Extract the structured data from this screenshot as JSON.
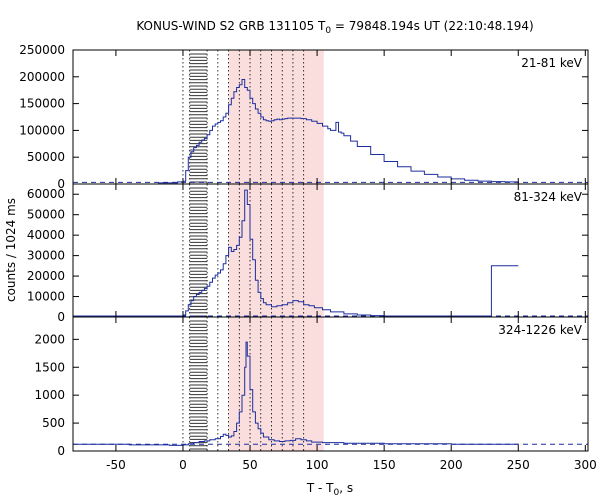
{
  "chart_data": {
    "type": "line",
    "title_main": "KONUS-WIND S2 GRB 131105 T",
    "title_sub": "0",
    "title_rest": " = 79848.194s UT (22:10:48.194)",
    "xlabel_main": "T - T",
    "xlabel_sub": "0",
    "xlabel_rest": ", s",
    "ylabel": "counts / 1024 ms",
    "xlim": [
      -82,
      302
    ],
    "xticks": [
      -50,
      0,
      50,
      100,
      150,
      200,
      250,
      300
    ],
    "colors": {
      "curve": "#1c2e9e",
      "background": "#1c2e9e",
      "shade": "#f6c8c8",
      "bands": "#000000"
    },
    "shade_region": [
      34,
      105
    ],
    "hatched_region": [
      5,
      18
    ],
    "vertical_lines": [
      0,
      5,
      18,
      26,
      34,
      42,
      50,
      58,
      66,
      74,
      82,
      90
    ],
    "panels": [
      {
        "energy_label": "21-81 keV",
        "ylim": [
          0,
          250000
        ],
        "yticks": [
          0,
          50000,
          100000,
          150000,
          200000,
          250000
        ],
        "background_level": 3000,
        "series": {
          "name": "21-81 keV",
          "points": [
            [
              -82,
              0
            ],
            [
              -20,
              0
            ],
            [
              -18,
              2000
            ],
            [
              -5,
              2000
            ],
            [
              -4,
              4000
            ],
            [
              0,
              5000
            ],
            [
              2,
              25000
            ],
            [
              4,
              50000
            ],
            [
              6,
              60000
            ],
            [
              8,
              68000
            ],
            [
              10,
              72000
            ],
            [
              12,
              78000
            ],
            [
              14,
              82000
            ],
            [
              16,
              85000
            ],
            [
              18,
              92000
            ],
            [
              20,
              100000
            ],
            [
              22,
              108000
            ],
            [
              24,
              112000
            ],
            [
              26,
              115000
            ],
            [
              28,
              118000
            ],
            [
              30,
              125000
            ],
            [
              32,
              132000
            ],
            [
              34,
              148000
            ],
            [
              36,
              160000
            ],
            [
              38,
              172000
            ],
            [
              40,
              180000
            ],
            [
              42,
              185000
            ],
            [
              44,
              195000
            ],
            [
              46,
              180000
            ],
            [
              48,
              175000
            ],
            [
              50,
              160000
            ],
            [
              52,
              150000
            ],
            [
              54,
              140000
            ],
            [
              56,
              132000
            ],
            [
              58,
              125000
            ],
            [
              60,
              120000
            ],
            [
              62,
              118000
            ],
            [
              64,
              117000
            ],
            [
              66,
              118000
            ],
            [
              68,
              120000
            ],
            [
              70,
              121000
            ],
            [
              72,
              120000
            ],
            [
              74,
              121000
            ],
            [
              76,
              122000
            ],
            [
              78,
              123000
            ],
            [
              80,
              123000
            ],
            [
              84,
              123000
            ],
            [
              88,
              122000
            ],
            [
              92,
              120000
            ],
            [
              96,
              117000
            ],
            [
              100,
              113000
            ],
            [
              104,
              108000
            ],
            [
              108,
              103000
            ],
            [
              110,
              100000
            ],
            [
              112,
              100000
            ],
            [
              114,
              115000
            ],
            [
              115,
              115000
            ],
            [
              116,
              97000
            ],
            [
              118,
              95000
            ],
            [
              120,
              90000
            ],
            [
              125,
              80000
            ],
            [
              130,
              70000
            ],
            [
              140,
              55000
            ],
            [
              150,
              42000
            ],
            [
              160,
              32000
            ],
            [
              170,
              24000
            ],
            [
              180,
              18000
            ],
            [
              190,
              13000
            ],
            [
              200,
              9500
            ],
            [
              210,
              7000
            ],
            [
              220,
              5500
            ],
            [
              230,
              4500
            ],
            [
              240,
              4000
            ],
            [
              250,
              3500
            ]
          ]
        }
      },
      {
        "energy_label": "81-324 keV",
        "ylim": [
          0,
          65000
        ],
        "yticks": [
          0,
          10000,
          20000,
          30000,
          40000,
          50000,
          60000
        ],
        "background_level": 500,
        "series": {
          "name": "81-324 keV",
          "points": [
            [
              -82,
              500
            ],
            [
              -5,
              500
            ],
            [
              0,
              1000
            ],
            [
              2,
              3000
            ],
            [
              4,
              6000
            ],
            [
              6,
              8000
            ],
            [
              8,
              10000
            ],
            [
              10,
              11000
            ],
            [
              12,
              12000
            ],
            [
              14,
              13000
            ],
            [
              16,
              14000
            ],
            [
              18,
              15000
            ],
            [
              20,
              17000
            ],
            [
              22,
              19000
            ],
            [
              24,
              20500
            ],
            [
              26,
              21500
            ],
            [
              28,
              23000
            ],
            [
              30,
              26000
            ],
            [
              32,
              30000
            ],
            [
              34,
              34000
            ],
            [
              36,
              32000
            ],
            [
              38,
              33000
            ],
            [
              40,
              35000
            ],
            [
              42,
              39000
            ],
            [
              44,
              47000
            ],
            [
              46,
              62000
            ],
            [
              48,
              55000
            ],
            [
              50,
              38000
            ],
            [
              52,
              28000
            ],
            [
              54,
              18000
            ],
            [
              56,
              12000
            ],
            [
              58,
              9000
            ],
            [
              60,
              7000
            ],
            [
              62,
              6000
            ],
            [
              66,
              5000
            ],
            [
              70,
              5500
            ],
            [
              74,
              6000
            ],
            [
              78,
              7000
            ],
            [
              82,
              8000
            ],
            [
              86,
              7500
            ],
            [
              90,
              6000
            ],
            [
              94,
              5500
            ],
            [
              98,
              4500
            ],
            [
              104,
              3500
            ],
            [
              110,
              2500
            ],
            [
              120,
              1500
            ],
            [
              130,
              1000
            ],
            [
              140,
              700
            ],
            [
              150,
              500
            ],
            [
              229,
              500
            ],
            [
              230,
              25000
            ],
            [
              250,
              25000
            ]
          ]
        }
      },
      {
        "energy_label": "324-1226 keV",
        "ylim": [
          0,
          2400
        ],
        "yticks": [
          0,
          500,
          1000,
          1500,
          2000
        ],
        "background_level": 120,
        "series": {
          "name": "324-1226 keV",
          "points": [
            [
              -82,
              120
            ],
            [
              -40,
              110
            ],
            [
              -10,
              100
            ],
            [
              0,
              110
            ],
            [
              4,
              130
            ],
            [
              8,
              150
            ],
            [
              12,
              170
            ],
            [
              16,
              180
            ],
            [
              20,
              200
            ],
            [
              24,
              220
            ],
            [
              28,
              260
            ],
            [
              30,
              300
            ],
            [
              32,
              280
            ],
            [
              34,
              250
            ],
            [
              36,
              270
            ],
            [
              38,
              350
            ],
            [
              40,
              500
            ],
            [
              42,
              700
            ],
            [
              44,
              1000
            ],
            [
              46,
              1500
            ],
            [
              47,
              1950
            ],
            [
              48,
              1700
            ],
            [
              50,
              1100
            ],
            [
              52,
              700
            ],
            [
              54,
              500
            ],
            [
              56,
              400
            ],
            [
              58,
              320
            ],
            [
              60,
              250
            ],
            [
              64,
              200
            ],
            [
              68,
              180
            ],
            [
              72,
              170
            ],
            [
              76,
              180
            ],
            [
              80,
              190
            ],
            [
              84,
              220
            ],
            [
              88,
              200
            ],
            [
              92,
              180
            ],
            [
              96,
              160
            ],
            [
              104,
              150
            ],
            [
              120,
              140
            ],
            [
              150,
              130
            ],
            [
              200,
              120
            ],
            [
              250,
              120
            ]
          ]
        }
      }
    ]
  }
}
